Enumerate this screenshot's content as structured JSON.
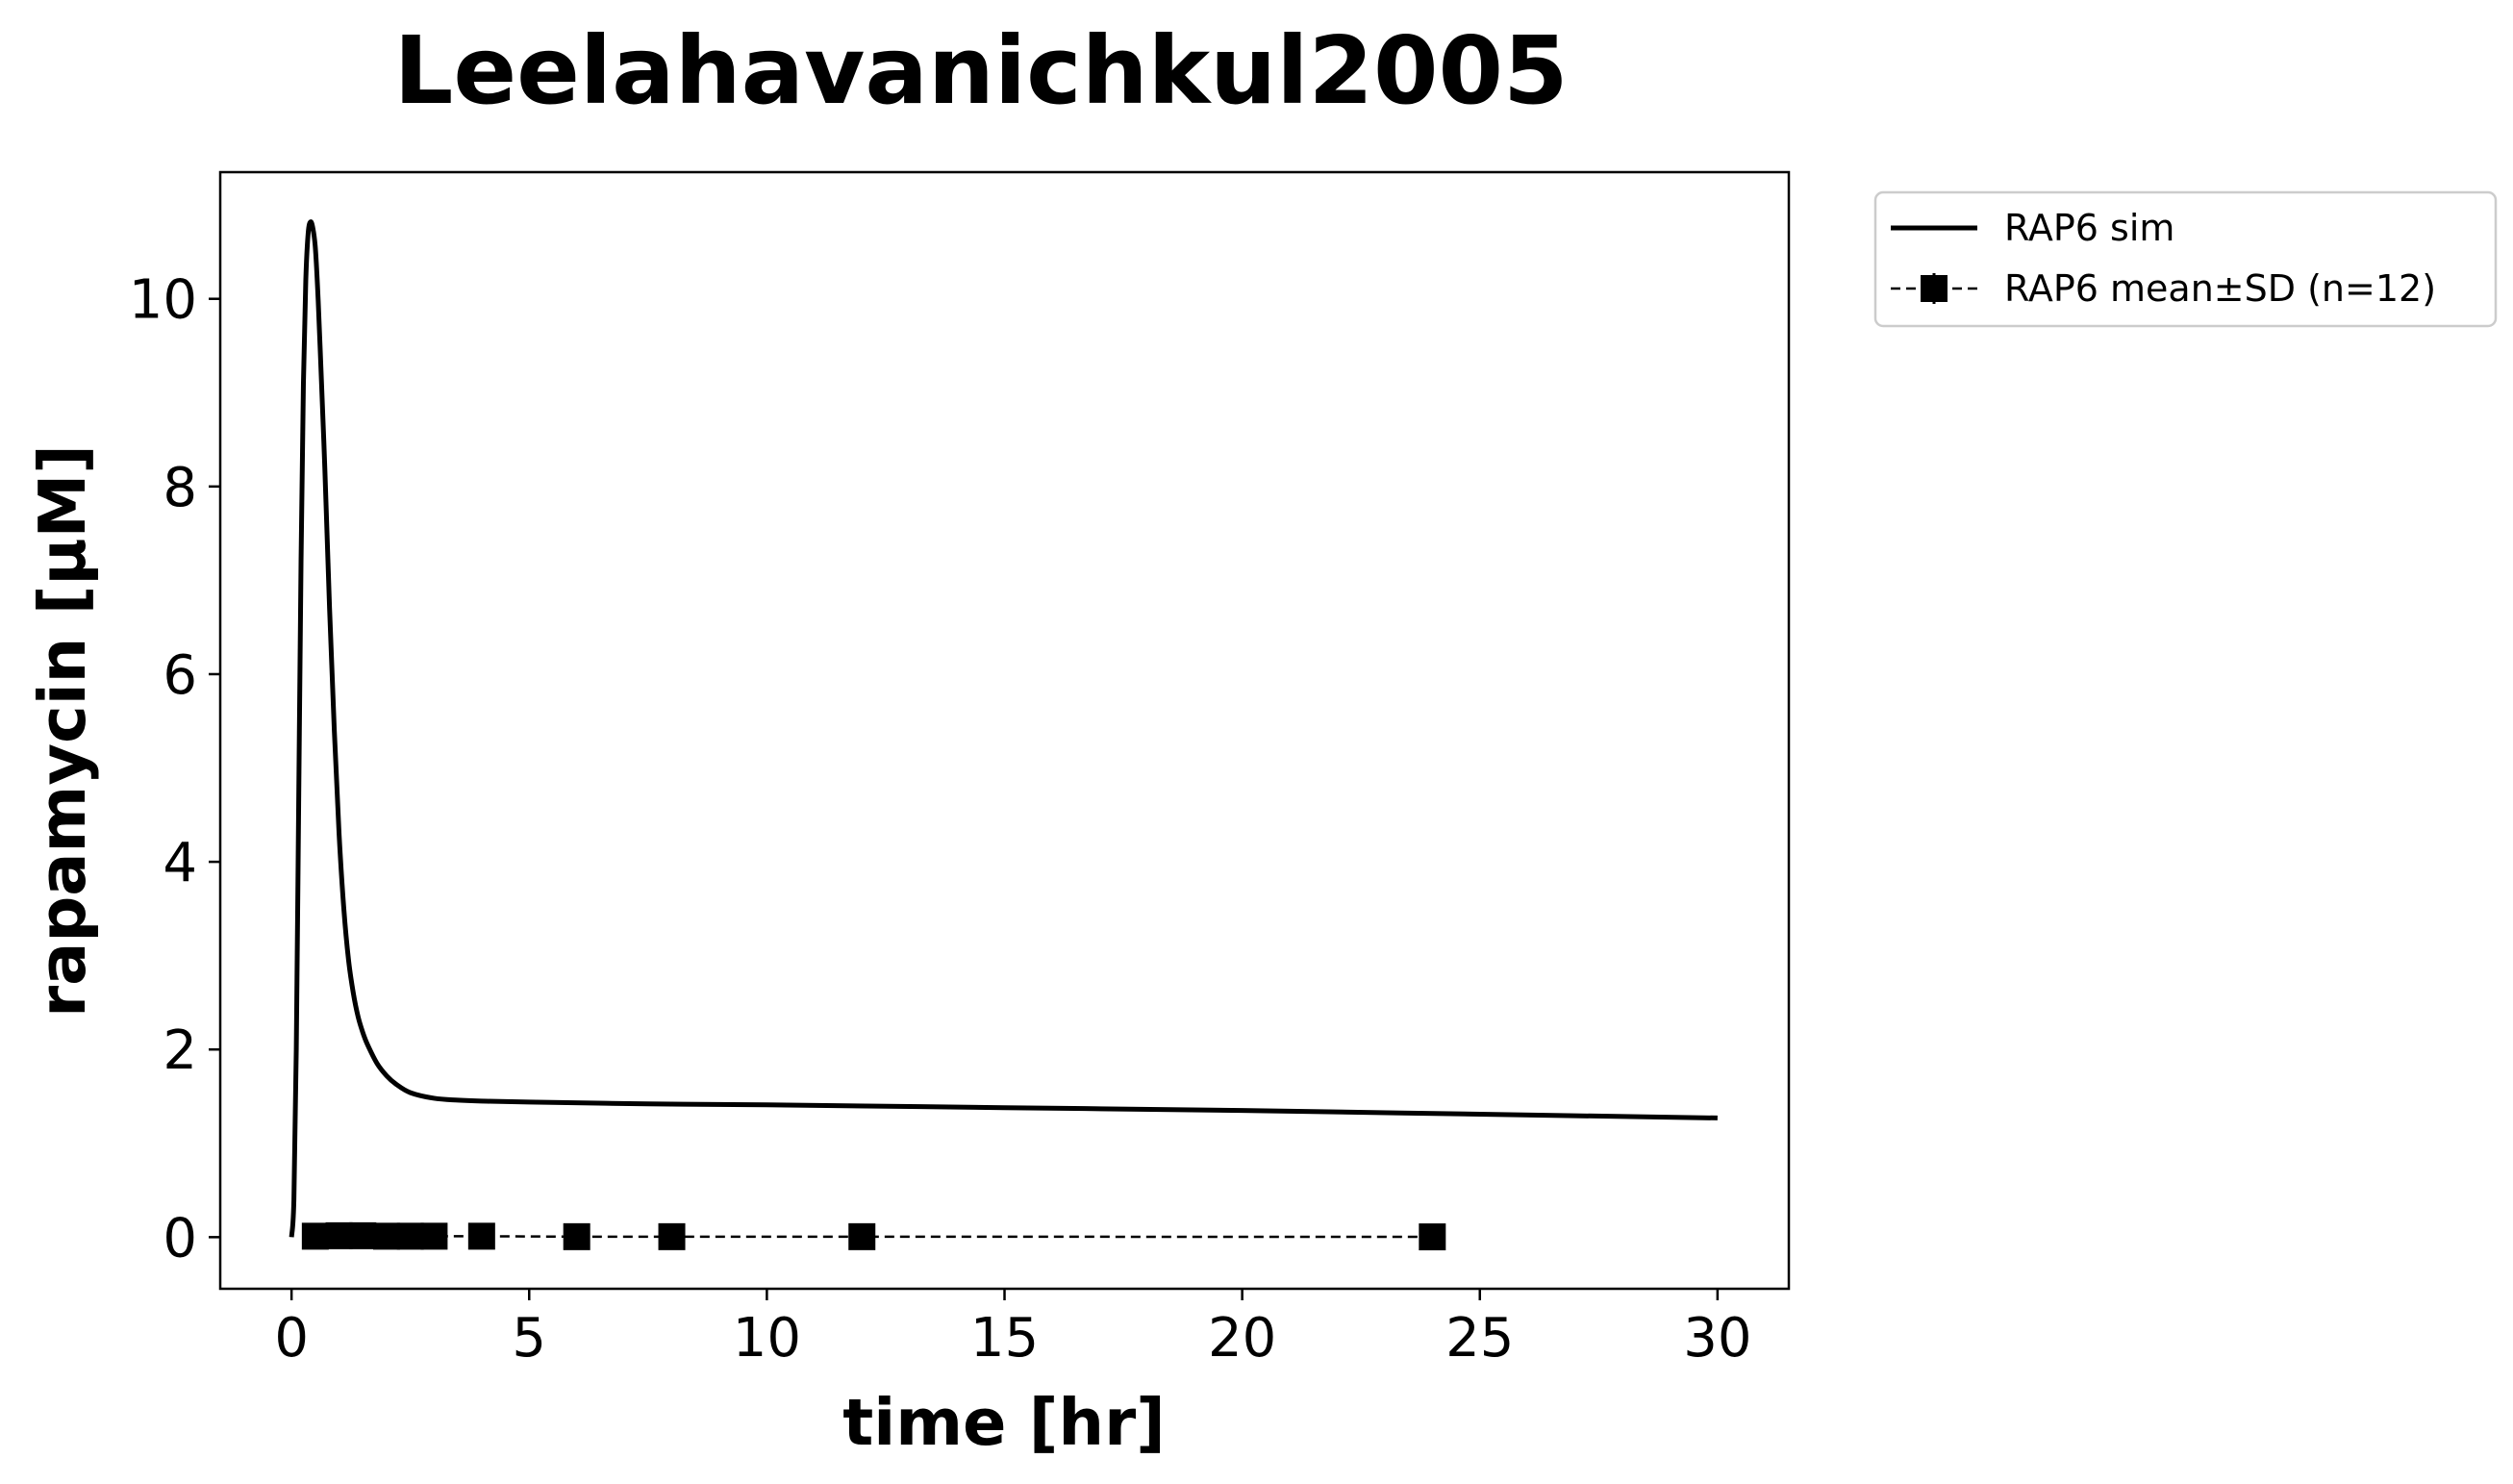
{
  "chart_data": {
    "type": "line",
    "title": "Leelahavanichkul2005",
    "xlabel": "time [hr]",
    "ylabel": "rapamycin [μM]",
    "xlim": [
      -1.5,
      31.5
    ],
    "ylim": [
      -0.55,
      11.35
    ],
    "xticks": [
      0,
      5,
      10,
      15,
      20,
      25,
      30
    ],
    "yticks": [
      0,
      2,
      4,
      6,
      8,
      10
    ],
    "grid": false,
    "legend_position": "outside top-right",
    "series": [
      {
        "name": "RAP6 sim",
        "style": "solid line",
        "color": "#000000",
        "x": [
          0,
          0.05,
          0.1,
          0.15,
          0.2,
          0.25,
          0.3,
          0.35,
          0.4,
          0.45,
          0.5,
          0.55,
          0.6,
          0.7,
          0.8,
          0.9,
          1.0,
          1.1,
          1.2,
          1.3,
          1.4,
          1.5,
          1.6,
          1.8,
          2.0,
          2.2,
          2.5,
          3.0,
          3.5,
          4.0,
          5.0,
          7.5,
          10,
          15,
          20,
          25,
          30
        ],
        "y": [
          0,
          0.4,
          2.0,
          4.6,
          7.2,
          9.1,
          10.2,
          10.7,
          10.82,
          10.75,
          10.55,
          10.1,
          9.5,
          8.2,
          6.7,
          5.4,
          4.3,
          3.5,
          2.95,
          2.6,
          2.35,
          2.18,
          2.05,
          1.85,
          1.72,
          1.63,
          1.54,
          1.48,
          1.46,
          1.45,
          1.44,
          1.42,
          1.41,
          1.38,
          1.35,
          1.31,
          1.27
        ]
      },
      {
        "name": "RAP6 mean±SD (n=12)",
        "style": "dashed line with square markers",
        "color": "#000000",
        "x": [
          0.5,
          1.0,
          1.5,
          2.0,
          2.5,
          3.0,
          4.0,
          6.0,
          8.0,
          12.0,
          24.0
        ],
        "y": [
          0.01,
          0.015,
          0.015,
          0.01,
          0.01,
          0.01,
          0.01,
          0.005,
          0.005,
          0.005,
          0.003
        ]
      }
    ]
  }
}
